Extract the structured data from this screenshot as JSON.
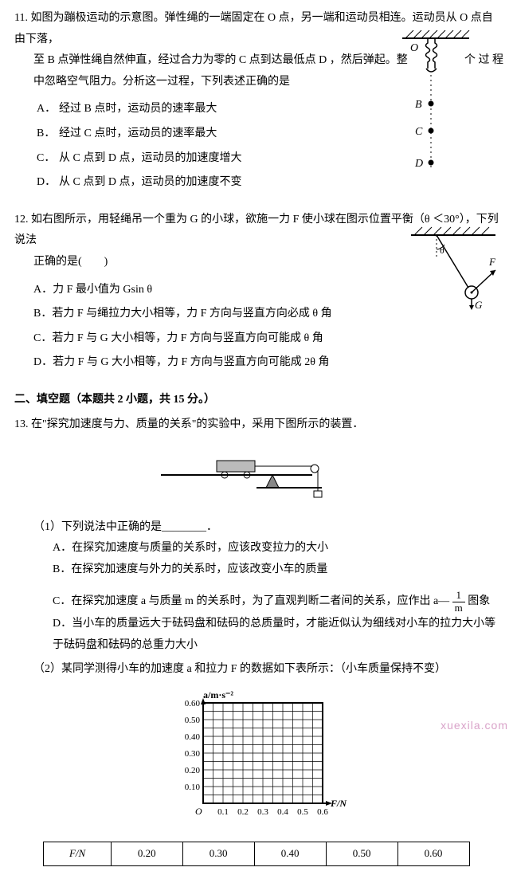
{
  "q11": {
    "num": "11.",
    "stem_l1": "如图为蹦极运动的示意图。弹性绳的一端固定在 O 点，另一端和运动员相连。运动员从 O 点自由下落，",
    "stem_l2_a": "至 B 点弹性绳自然伸直，经过合力为零的 C 点到达最低点 D ，然后弹起。整",
    "stem_l2_b": "个 过 程",
    "stem_l3": "中忽略空气阻力。分析这一过程，下列表述正确的是",
    "opts": {
      "A": "经过 B 点时，运动员的速率最大",
      "B": "经过 C 点时，运动员的速率最大",
      "C": "从 C 点到 D 点，运动员的加速度增大",
      "D": "从 C 点到 D 点，运动员的加速度不变"
    },
    "diagram": {
      "O": "O",
      "B": "B",
      "C": "C",
      "D": "D"
    }
  },
  "q12": {
    "num": "12.",
    "stem_a": "如右图所示，用轻绳吊一个重为 G 的小球，欲施一力 F 使小球在图示位置平衡（θ ＜30°），下列说法",
    "stem_b": "正确的是(　　)",
    "opts": {
      "A": "力 F 最小值为 Gsin θ",
      "B": "若力 F 与绳拉力大小相等，力 F 方向与竖直方向必成 θ 角",
      "C": "若力 F 与 G 大小相等，力 F 方向与竖直方向可能成 θ 角",
      "D": "若力 F 与 G 大小相等，力 F 方向与竖直方向可能成 2θ 角"
    },
    "diagram": {
      "theta": "θ",
      "F": "F",
      "G": "G"
    }
  },
  "section2": {
    "title": "二、填空题（本题共 2 小题，共 15 分。）"
  },
  "q13": {
    "num": "13.",
    "stem": "在\"探究加速度与力、质量的关系\"的实验中，采用下图所示的装置．",
    "p1": "（1）下列说法中正确的是________．",
    "opts": {
      "A": "在探究加速度与质量的关系时，应该改变拉力的大小",
      "B": "在探究加速度与外力的关系时，应该改变小车的质量",
      "C_pre": "在探究加速度 a 与质量 m 的关系时，为了直观判断二者间的关系，应作出 a— ",
      "C_post": " 图象",
      "D": "当小车的质量远大于砝码盘和砝码的总质量时，才能近似认为细线对小车的拉力大小等于砝码盘和砝码的总重力大小"
    },
    "p2": "（2）某同学测得小车的加速度 a 和拉力 F 的数据如下表所示：（小车质量保持不变）",
    "chart": {
      "ylabel": "a/m·s⁻²",
      "xlabel": "F/N",
      "origin": "O",
      "yticks": [
        "0.10",
        "0.20",
        "0.30",
        "0.40",
        "0.50",
        "0.60"
      ],
      "xticks": [
        "0.1",
        "0.2",
        "0.3",
        "0.4",
        "0.5",
        "0.6"
      ],
      "ylim": [
        0,
        0.6
      ],
      "xlim": [
        0,
        0.6
      ],
      "grid_color": "#000",
      "bg": "#fff"
    },
    "table": {
      "header": "F/N",
      "cols": [
        "0.20",
        "0.30",
        "0.40",
        "0.50",
        "0.60"
      ]
    }
  },
  "frac": {
    "num": "1",
    "den": "m"
  },
  "watermark": "xuexila.com"
}
